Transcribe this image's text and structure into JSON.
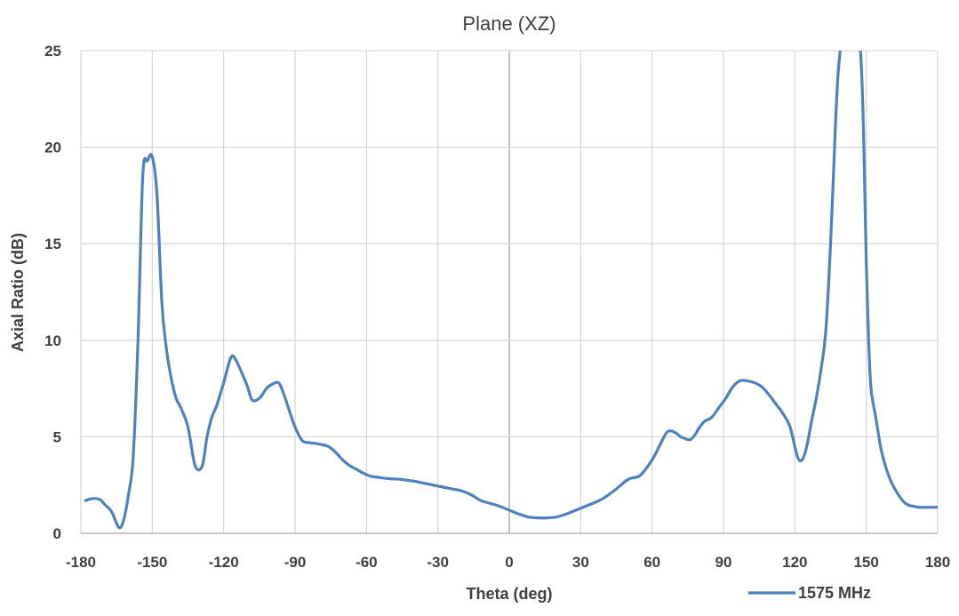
{
  "chart_data": {
    "type": "line",
    "title": "Plane (XZ)",
    "xlabel": "Theta (deg)",
    "ylabel": "Axial Ratio (dB)",
    "xlim": [
      -180,
      180
    ],
    "ylim": [
      0,
      25
    ],
    "xticks": [
      -180,
      -150,
      -120,
      -90,
      -60,
      -30,
      0,
      30,
      60,
      90,
      120,
      150,
      180
    ],
    "yticks": [
      0,
      5,
      10,
      15,
      20,
      25
    ],
    "grid": "vertical and horizontal",
    "legend": "bottom-right",
    "series": [
      {
        "name": "1575 MHz",
        "color": "#4f81bd",
        "x": [
          -178,
          -175,
          -172,
          -170,
          -167,
          -164,
          -162,
          -160,
          -158,
          -156,
          -154,
          -152,
          -150,
          -148,
          -146,
          -144,
          -142,
          -140,
          -138,
          -135,
          -132,
          -129,
          -127,
          -125,
          -123,
          -120,
          -117,
          -115,
          -112,
          -110,
          -108,
          -105,
          -102,
          -100,
          -97,
          -95,
          -92,
          -90,
          -87,
          -84,
          -81,
          -79,
          -76,
          -73,
          -70,
          -67,
          -64,
          -61,
          -58,
          -55,
          -52,
          -49,
          -46,
          -43,
          -40,
          -36,
          -32,
          -28,
          -24,
          -20,
          -16,
          -12,
          -8,
          -4,
          0,
          4,
          8,
          12,
          16,
          20,
          24,
          28,
          32,
          36,
          40,
          45,
          50,
          55,
          60,
          63,
          66,
          68,
          70,
          72,
          74,
          76,
          78,
          80,
          82,
          85,
          88,
          91,
          94,
          97,
          100,
          103,
          106,
          109,
          112,
          115,
          118,
          121,
          123,
          125,
          127,
          129,
          131,
          133,
          135,
          137,
          138,
          139,
          140,
          141,
          142,
          144,
          146,
          148,
          149,
          150,
          151,
          152,
          154,
          156,
          158,
          160,
          162,
          164,
          166,
          168,
          170,
          172,
          175,
          178,
          180
        ],
        "values": [
          1.7,
          1.8,
          1.75,
          1.5,
          1.1,
          0.3,
          0.7,
          2.0,
          4.0,
          10.0,
          18.5,
          19.3,
          19.5,
          17.5,
          12.0,
          9.5,
          8.0,
          7.0,
          6.5,
          5.5,
          3.5,
          3.5,
          5.0,
          6.0,
          6.6,
          7.8,
          9.1,
          9.0,
          8.2,
          7.6,
          6.9,
          7.0,
          7.5,
          7.7,
          7.8,
          7.3,
          6.2,
          5.5,
          4.8,
          4.7,
          4.65,
          4.6,
          4.5,
          4.2,
          3.8,
          3.5,
          3.3,
          3.1,
          2.95,
          2.9,
          2.85,
          2.82,
          2.8,
          2.75,
          2.7,
          2.6,
          2.5,
          2.4,
          2.3,
          2.2,
          2.0,
          1.7,
          1.55,
          1.4,
          1.2,
          1.0,
          0.85,
          0.8,
          0.8,
          0.85,
          1.0,
          1.2,
          1.4,
          1.6,
          1.85,
          2.3,
          2.8,
          3.0,
          3.8,
          4.5,
          5.2,
          5.3,
          5.2,
          5.0,
          4.9,
          4.85,
          5.1,
          5.5,
          5.8,
          6.0,
          6.5,
          7.0,
          7.6,
          7.9,
          7.9,
          7.8,
          7.6,
          7.2,
          6.7,
          6.2,
          5.5,
          4.0,
          3.8,
          4.5,
          5.8,
          7.0,
          8.5,
          10.5,
          15.0,
          21.0,
          23.5,
          25.0,
          26.5,
          27.5,
          28.0,
          28.5,
          27.5,
          24.0,
          20.0,
          14.0,
          10.0,
          7.5,
          6.0,
          4.5,
          3.5,
          2.8,
          2.3,
          1.9,
          1.6,
          1.45,
          1.4,
          1.35,
          1.35,
          1.35,
          1.35
        ]
      }
    ]
  }
}
